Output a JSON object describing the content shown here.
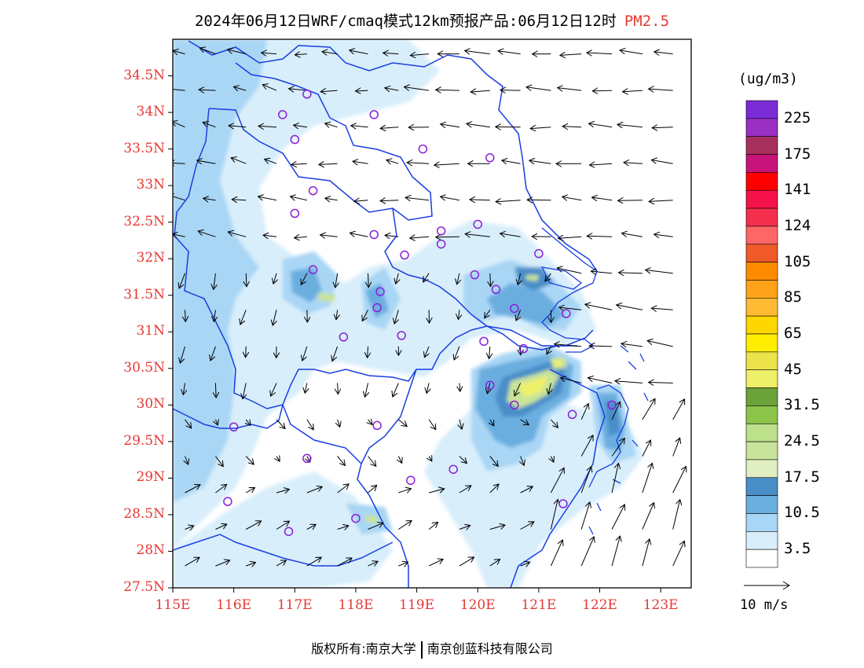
{
  "title": {
    "main": "2024年06月12日WRF/cmaq模式12km预报产品:06月12日12时",
    "species": "PM2.5"
  },
  "axes": {
    "lat_labels": [
      "34.5N",
      "34N",
      "33.5N",
      "33N",
      "32.5N",
      "32N",
      "31.5N",
      "31N",
      "30.5N",
      "30N",
      "29.5N",
      "29N",
      "28.5N",
      "28N",
      "27.5N"
    ],
    "lon_labels": [
      "115E",
      "116E",
      "117E",
      "118E",
      "119E",
      "120E",
      "121E",
      "122E",
      "123E"
    ],
    "lat_range": [
      27.5,
      35.0
    ],
    "lon_range": [
      115.0,
      123.5
    ]
  },
  "colorbar": {
    "unit": "(ug/m3)",
    "labels": [
      "225",
      "175",
      "141",
      "124",
      "105",
      "85",
      "65",
      "45",
      "31.5",
      "24.5",
      "17.5",
      "10.5",
      "3.5"
    ],
    "colors": [
      "#7b2bd6",
      "#9a2fc4",
      "#a8305c",
      "#c7137a",
      "#ff0000",
      "#f5124a",
      "#f5304f",
      "#ff6666",
      "#f05a2a",
      "#ff8c00",
      "#ffa31a",
      "#ffbb33",
      "#ffd700",
      "#ffee00",
      "#ece24a",
      "#eef06a",
      "#6ba23a",
      "#8cc44a",
      "#bde08a",
      "#c8e39a",
      "#e0eec2",
      "#4a8ec8",
      "#6baee0",
      "#a9d6f5",
      "#d8eefb",
      "#ffffff"
    ]
  },
  "reference_vector": {
    "label": "10 m/s"
  },
  "footer": {
    "left": "版权所有:南京大学",
    "right": "南京创蓝科技有限公司"
  },
  "style": {
    "accent_label_color": "#e53935",
    "boundary_color": "#1a3fe0",
    "station_color": "#8a1fd6"
  },
  "stations": [
    {
      "lon": 117.2,
      "lat": 34.25
    },
    {
      "lon": 116.8,
      "lat": 33.97
    },
    {
      "lon": 118.3,
      "lat": 33.97
    },
    {
      "lon": 117.0,
      "lat": 33.63
    },
    {
      "lon": 119.1,
      "lat": 33.5
    },
    {
      "lon": 120.2,
      "lat": 33.38
    },
    {
      "lon": 117.3,
      "lat": 32.93
    },
    {
      "lon": 117.0,
      "lat": 32.62
    },
    {
      "lon": 120.0,
      "lat": 32.47
    },
    {
      "lon": 119.4,
      "lat": 32.38
    },
    {
      "lon": 118.3,
      "lat": 32.33
    },
    {
      "lon": 119.4,
      "lat": 32.2
    },
    {
      "lon": 118.8,
      "lat": 32.05
    },
    {
      "lon": 121.0,
      "lat": 32.07
    },
    {
      "lon": 117.3,
      "lat": 31.85
    },
    {
      "lon": 119.95,
      "lat": 31.78
    },
    {
      "lon": 118.4,
      "lat": 31.55
    },
    {
      "lon": 120.3,
      "lat": 31.58
    },
    {
      "lon": 118.35,
      "lat": 31.33
    },
    {
      "lon": 120.6,
      "lat": 31.32
    },
    {
      "lon": 121.45,
      "lat": 31.25
    },
    {
      "lon": 117.8,
      "lat": 30.93
    },
    {
      "lon": 118.75,
      "lat": 30.95
    },
    {
      "lon": 120.1,
      "lat": 30.87
    },
    {
      "lon": 120.75,
      "lat": 30.77
    },
    {
      "lon": 120.2,
      "lat": 30.27
    },
    {
      "lon": 120.6,
      "lat": 30.0
    },
    {
      "lon": 122.2,
      "lat": 30.0
    },
    {
      "lon": 121.55,
      "lat": 29.87
    },
    {
      "lon": 116.0,
      "lat": 29.7
    },
    {
      "lon": 118.35,
      "lat": 29.72
    },
    {
      "lon": 117.2,
      "lat": 29.27
    },
    {
      "lon": 118.9,
      "lat": 28.97
    },
    {
      "lon": 119.6,
      "lat": 29.12
    },
    {
      "lon": 115.9,
      "lat": 28.68
    },
    {
      "lon": 121.4,
      "lat": 28.65
    },
    {
      "lon": 118.0,
      "lat": 28.45
    },
    {
      "lon": 116.9,
      "lat": 28.27
    }
  ]
}
